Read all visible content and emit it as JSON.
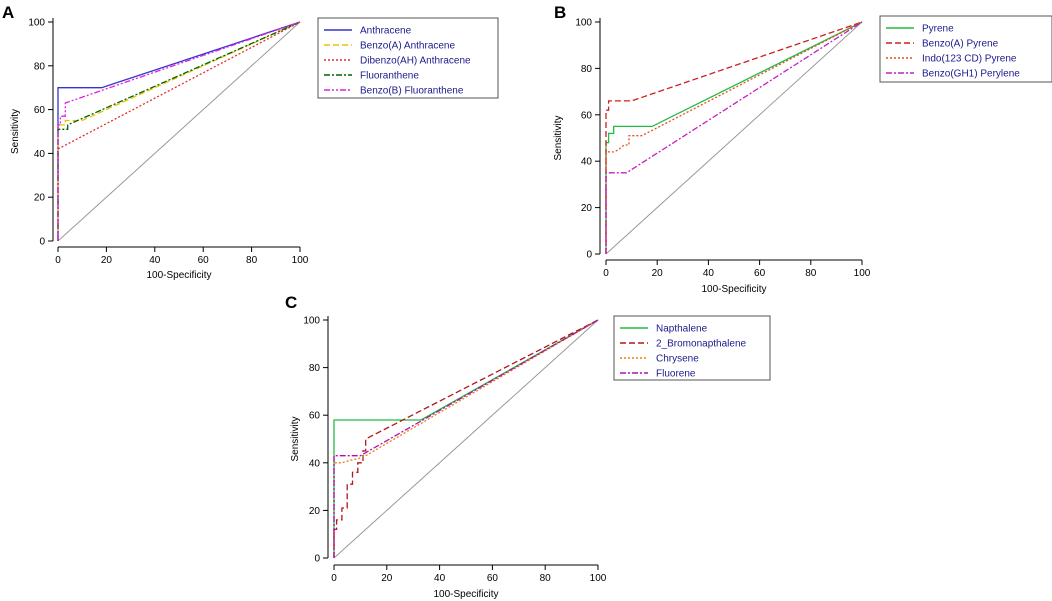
{
  "chart_data": [
    {
      "panel": "A",
      "type": "line",
      "xlabel": "100-Specificity",
      "ylabel": "Sensitivity",
      "xlim": [
        0,
        100
      ],
      "ylim": [
        0,
        100
      ],
      "xticks": [
        "0",
        "20",
        "40",
        "60",
        "80",
        "100"
      ],
      "yticks": [
        "0",
        "20",
        "40",
        "60",
        "80",
        "100"
      ],
      "reference_line": {
        "x": [
          0,
          100
        ],
        "y": [
          0,
          100
        ],
        "color": "#999999"
      },
      "series": [
        {
          "name": "Anthracene",
          "color": "#3333cc",
          "dash": "",
          "x": [
            0,
            0,
            18,
            100
          ],
          "y": [
            0,
            70,
            70,
            100
          ]
        },
        {
          "name": "Benzo(A) Anthracene",
          "color": "#f0c000",
          "dash": "6,3",
          "x": [
            0,
            0,
            3,
            3,
            10,
            100
          ],
          "y": [
            0,
            53,
            53,
            55,
            55,
            100
          ]
        },
        {
          "name": "Dibenzo(AH) Anthracene",
          "color": "#e03030",
          "dash": "2,2",
          "x": [
            0,
            0,
            100
          ],
          "y": [
            0,
            42,
            100
          ]
        },
        {
          "name": "Fluoranthene",
          "color": "#006400",
          "dash": "6,2,2,2",
          "x": [
            0,
            0,
            4,
            4,
            100
          ],
          "y": [
            0,
            51,
            51,
            53,
            100
          ]
        },
        {
          "name": "Benzo(B) Fluoranthene",
          "color": "#e020e0",
          "dash": "6,2,2,2,2,2",
          "x": [
            0,
            0,
            1,
            1,
            3,
            3,
            100
          ],
          "y": [
            0,
            53,
            53,
            57,
            57,
            63,
            100
          ]
        }
      ]
    },
    {
      "panel": "B",
      "type": "line",
      "xlabel": "100-Specificity",
      "ylabel": "Sensitivity",
      "xlim": [
        0,
        100
      ],
      "ylim": [
        0,
        100
      ],
      "xticks": [
        "0",
        "20",
        "40",
        "60",
        "80",
        "100"
      ],
      "yticks": [
        "0",
        "20",
        "40",
        "60",
        "80",
        "100"
      ],
      "reference_line": {
        "x": [
          0,
          100
        ],
        "y": [
          0,
          100
        ],
        "color": "#999999"
      },
      "series": [
        {
          "name": "Pyrene",
          "color": "#22bb44",
          "dash": "",
          "x": [
            0,
            0,
            1,
            1,
            3,
            3,
            18,
            100
          ],
          "y": [
            0,
            48,
            48,
            52,
            52,
            55,
            55,
            100
          ]
        },
        {
          "name": "Benzo(A) Pyrene",
          "color": "#cc2020",
          "dash": "6,3",
          "x": [
            0,
            0,
            1,
            1,
            10,
            100
          ],
          "y": [
            0,
            62,
            62,
            66,
            66,
            100
          ]
        },
        {
          "name": "Indo(123 CD) Pyrene",
          "color": "#e05020",
          "dash": "2,2",
          "x": [
            0,
            0,
            3,
            5,
            7,
            9,
            9,
            14,
            100
          ],
          "y": [
            0,
            44,
            44,
            45,
            47,
            47,
            51,
            51,
            100
          ]
        },
        {
          "name": "Benzo(GH1) Perylene",
          "color": "#c020c0",
          "dash": "6,2,2,2",
          "x": [
            0,
            0,
            8,
            100
          ],
          "y": [
            0,
            35,
            35,
            100
          ]
        }
      ]
    },
    {
      "panel": "C",
      "type": "line",
      "xlabel": "100-Specificity",
      "ylabel": "Sensitivity",
      "xlim": [
        0,
        100
      ],
      "ylim": [
        0,
        100
      ],
      "xticks": [
        "0",
        "20",
        "40",
        "60",
        "80",
        "100"
      ],
      "yticks": [
        "0",
        "20",
        "40",
        "60",
        "80",
        "100"
      ],
      "reference_line": {
        "x": [
          0,
          100
        ],
        "y": [
          0,
          100
        ],
        "color": "#999999"
      },
      "series": [
        {
          "name": "Napthalene",
          "color": "#22bb44",
          "dash": "",
          "x": [
            0,
            0,
            33,
            100
          ],
          "y": [
            0,
            58,
            58,
            100
          ]
        },
        {
          "name": "2_Bromonapthalene",
          "color": "#b01818",
          "dash": "6,3",
          "x": [
            0,
            0,
            1,
            1,
            3,
            3,
            5,
            5,
            7,
            7,
            9,
            9,
            11,
            11,
            12,
            12,
            100
          ],
          "y": [
            0,
            12,
            12,
            16,
            16,
            21,
            21,
            31,
            31,
            36,
            36,
            40,
            40,
            45,
            45,
            50,
            100
          ]
        },
        {
          "name": "Chrysene",
          "color": "#f07a10",
          "dash": "2,2",
          "x": [
            0,
            0,
            3,
            6,
            10,
            12,
            100
          ],
          "y": [
            0,
            40,
            40,
            41,
            42,
            43,
            100
          ]
        },
        {
          "name": "Fluorene",
          "color": "#b010b0",
          "dash": "6,2,2,2",
          "x": [
            0,
            0,
            10,
            100
          ],
          "y": [
            0,
            43,
            43,
            100
          ]
        }
      ]
    }
  ]
}
